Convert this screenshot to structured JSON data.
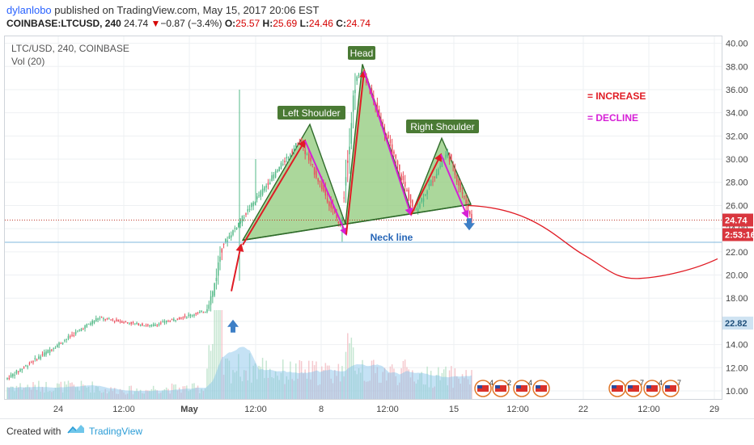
{
  "header": {
    "publisher": "dylanlobo",
    "published_text": " published on TradingView.com, May 15, 2017 20:06 EST",
    "symbol": "COINBASE:LTCUSD, 240",
    "last": "24.74",
    "change": "−0.87 (−3.4%)",
    "ohlc": {
      "o_label": "O:",
      "o": "25.57",
      "h_label": "H:",
      "h": "25.69",
      "l_label": "L:",
      "l": "24.46",
      "c_label": "C:",
      "c": "24.74"
    }
  },
  "legend": {
    "title": "LTC/USD, 240, COINBASE",
    "volume": "Vol (20)"
  },
  "footer": {
    "created_with": "Created with",
    "brand": "TradingView"
  },
  "colors": {
    "up": "#53b987",
    "down": "#eb4d5c",
    "increase": "#e01b24",
    "decline": "#d620d6",
    "pattern_fill": "#8fc97a",
    "label_bg": "#4a7a34"
  },
  "chart_data": {
    "type": "candlestick",
    "y_axis": {
      "min": 9.3,
      "max": 40.6,
      "ticks": [
        10,
        12,
        14,
        16,
        18,
        20,
        22,
        24,
        26,
        28,
        30,
        32,
        34,
        36,
        38,
        40
      ],
      "tick_labels": [
        "10.00",
        "12.00",
        "14.00",
        "16.00",
        "18.00",
        "20.00",
        "22.00",
        "24.00",
        "26.00",
        "28.00",
        "30.00",
        "32.00",
        "34.00",
        "36.00",
        "38.00",
        "40.00"
      ]
    },
    "x_axis": {
      "ticks": [
        {
          "label": "24",
          "bold": false
        },
        {
          "label": "12:00",
          "bold": false
        },
        {
          "label": "May",
          "bold": true
        },
        {
          "label": "12:00",
          "bold": false
        },
        {
          "label": "8",
          "bold": false
        },
        {
          "label": "12:00",
          "bold": false
        },
        {
          "label": "15",
          "bold": false
        },
        {
          "label": "12:00",
          "bold": false
        },
        {
          "label": "22",
          "bold": false
        },
        {
          "label": "12:00",
          "bold": false
        },
        {
          "label": "29",
          "bold": false
        }
      ]
    },
    "price_labels": {
      "last": "24.74",
      "countdown": "2:53:16",
      "hline": "22.82"
    },
    "pattern_labels": {
      "left": "Left Shoulder",
      "head": "Head",
      "right": "Right Shoulder",
      "neck": "Neck line"
    },
    "legend_items": {
      "increase": "= INCREASE",
      "decline": "= DECLINE"
    },
    "horizontal_lines": {
      "last_price": 24.74,
      "blue_line": 22.82
    },
    "pattern": {
      "left_shoulder_top": 33.0,
      "head_top": 38.2,
      "right_shoulder_top": 31.8,
      "neck_left": 23.0,
      "neck_right": 26.1
    },
    "events": [
      {
        "label": "4"
      },
      {
        "label": "2"
      },
      {
        "label": "4"
      },
      {
        "label": ""
      },
      {
        "label": ""
      },
      {
        "label": "7"
      },
      {
        "label": "4"
      },
      {
        "label": "7"
      }
    ],
    "sections": [
      {
        "bars": 50,
        "start": 11.0,
        "end": 16.3,
        "vol": 0.14
      },
      {
        "bars": 28,
        "start": 16.3,
        "end": 15.6,
        "vol": 0.1
      },
      {
        "bars": 30,
        "start": 15.6,
        "end": 16.9,
        "vol": 0.12
      },
      {
        "bars": 4,
        "start": 16.9,
        "end": 18.5,
        "vol": 0.6
      },
      {
        "bars": 5,
        "start": 18.5,
        "end": 22.5,
        "vol": 0.9
      },
      {
        "bars": 26,
        "start": 22.5,
        "end": 28.2,
        "vol": 0.35
      },
      {
        "bars": 16,
        "start": 28.2,
        "end": 31.6,
        "vol": 0.3
      },
      {
        "bars": 22,
        "start": 31.6,
        "end": 24.2,
        "vol": 0.3
      },
      {
        "bars": 8,
        "start": 24.2,
        "end": 36.8,
        "vol": 0.5
      },
      {
        "bars": 4,
        "start": 36.8,
        "end": 37.6,
        "vol": 0.4
      },
      {
        "bars": 28,
        "start": 37.6,
        "end": 25.4,
        "vol": 0.3
      },
      {
        "bars": 18,
        "start": 25.4,
        "end": 30.6,
        "vol": 0.25
      },
      {
        "bars": 13,
        "start": 30.6,
        "end": 24.7,
        "vol": 0.25
      }
    ]
  }
}
